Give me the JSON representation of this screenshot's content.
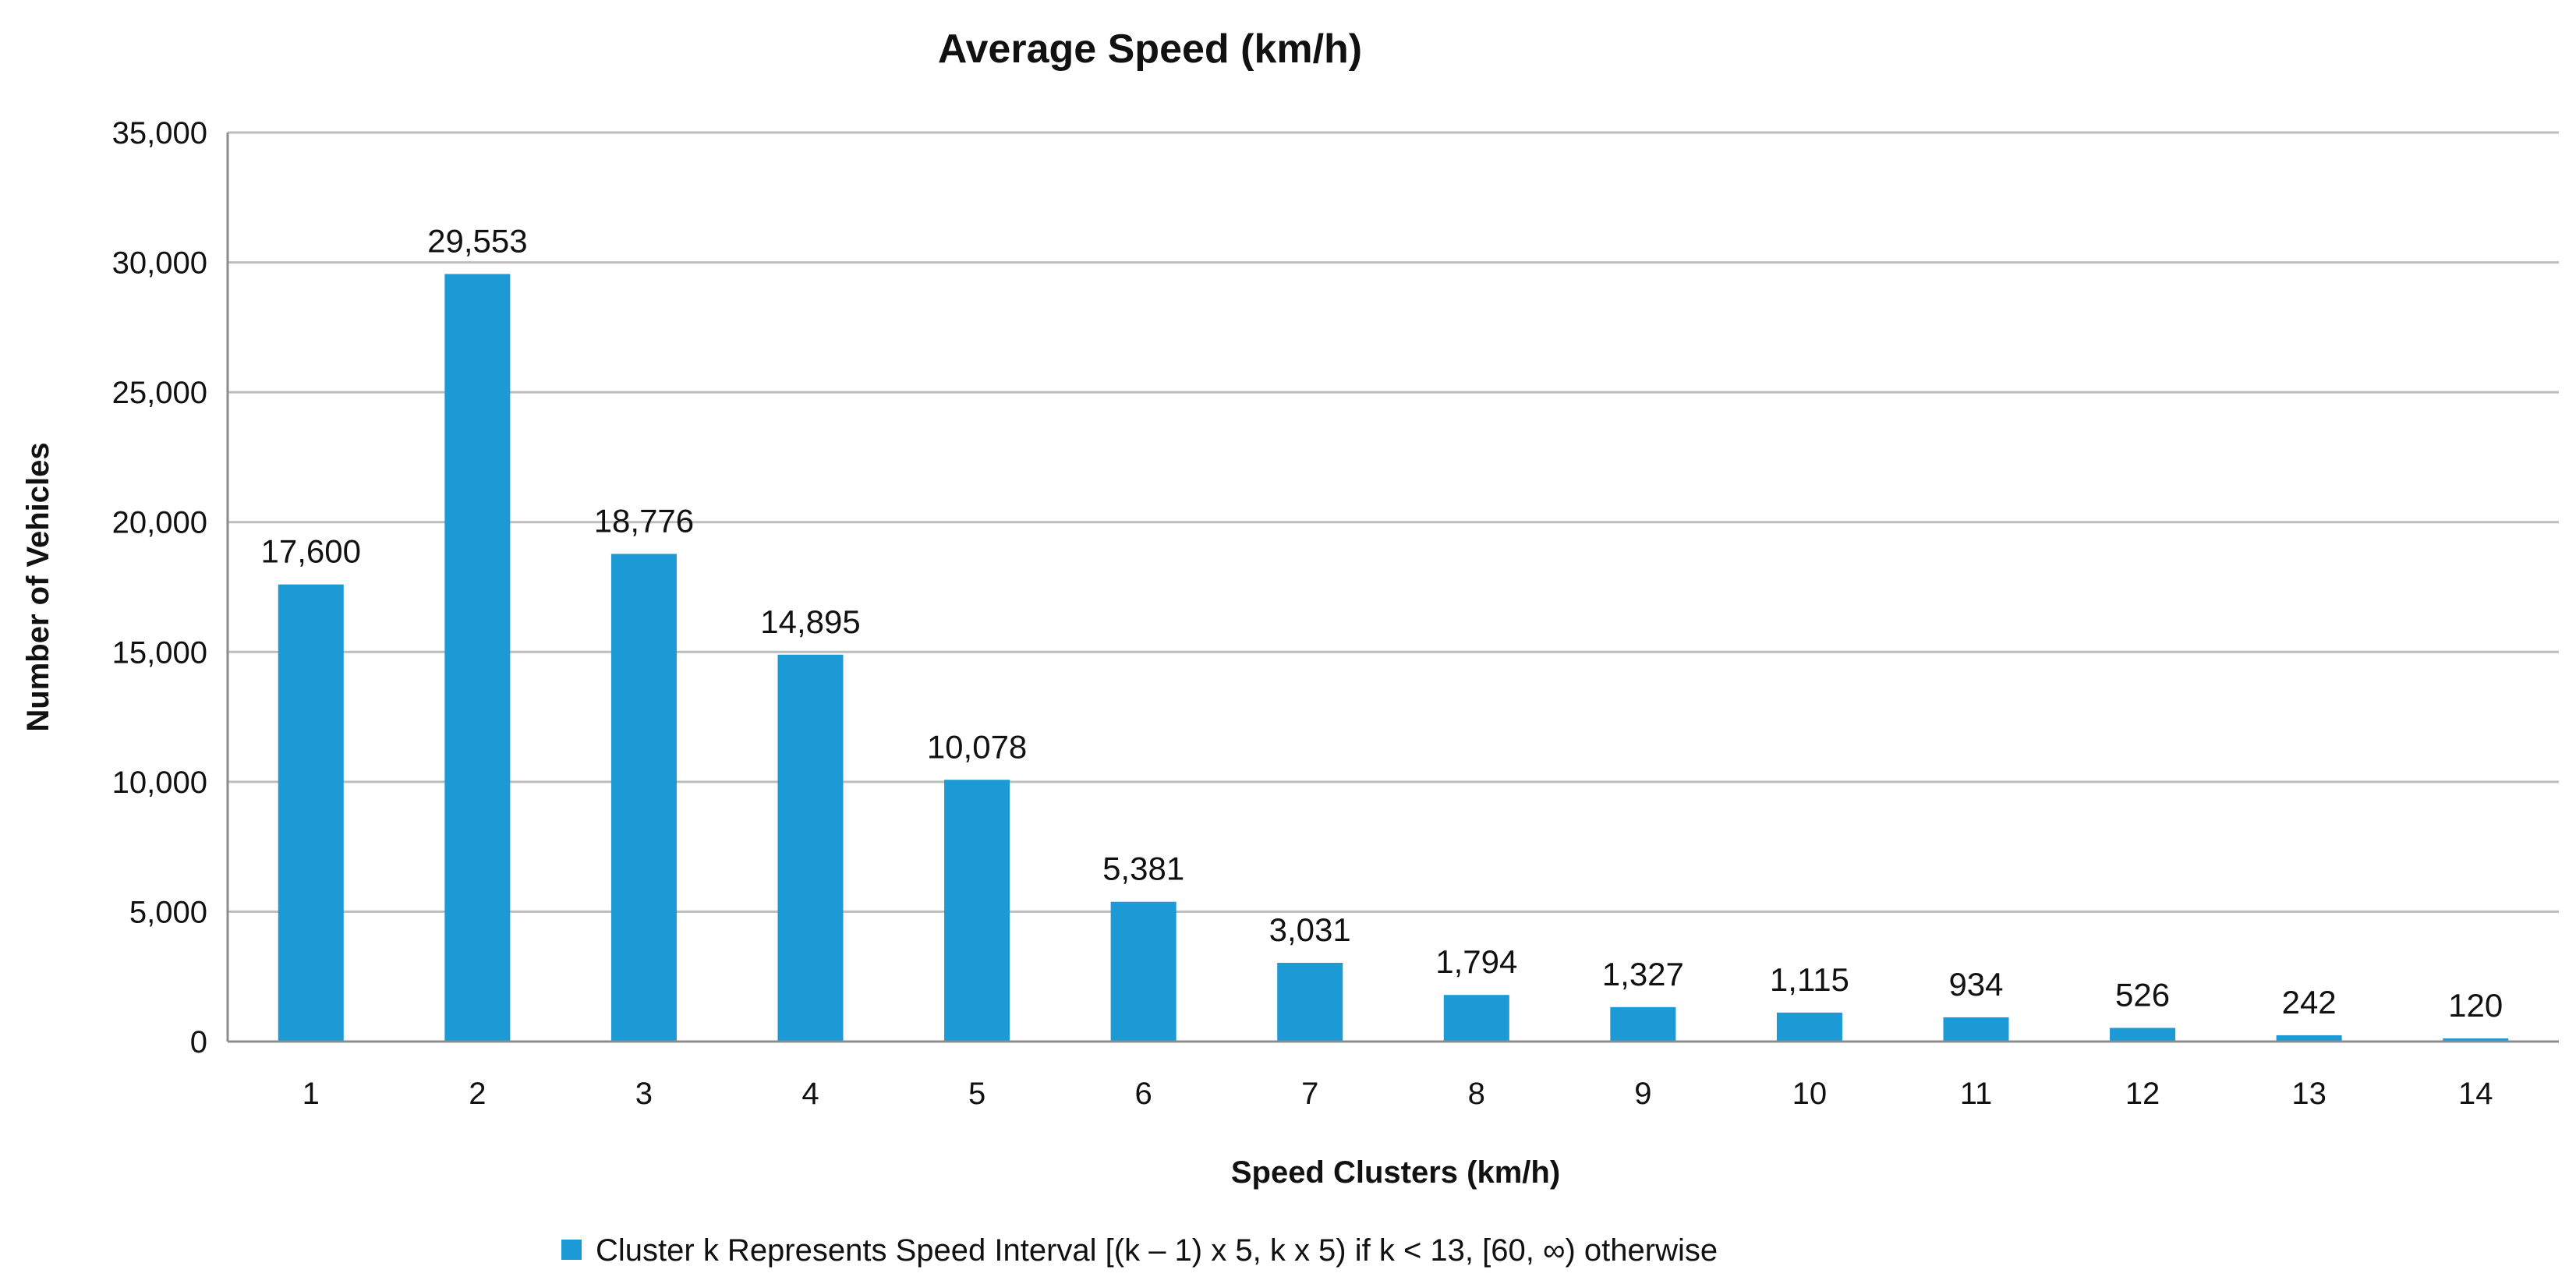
{
  "chart_data": {
    "type": "bar",
    "title": "Average Speed (km/h)",
    "xlabel": "Speed Clusters (km/h)",
    "ylabel": "Number of Vehicles",
    "categories": [
      "1",
      "2",
      "3",
      "4",
      "5",
      "6",
      "7",
      "8",
      "9",
      "10",
      "11",
      "12",
      "13",
      "14"
    ],
    "values": [
      17600,
      29553,
      18776,
      14895,
      10078,
      5381,
      3031,
      1794,
      1327,
      1115,
      934,
      526,
      242,
      120
    ],
    "value_labels": [
      "17,600",
      "29,553",
      "18,776",
      "14,895",
      "10,078",
      "5,381",
      "3,031",
      "1,794",
      "1,327",
      "1,115",
      "934",
      "526",
      "242",
      "120"
    ],
    "ylim": [
      0,
      35000
    ],
    "yticks": [
      0,
      5000,
      10000,
      15000,
      20000,
      25000,
      30000,
      35000
    ],
    "ytick_labels": [
      "0",
      "5,000",
      "10,000",
      "15,000",
      "20,000",
      "25,000",
      "30,000",
      "35,000"
    ],
    "grid": true,
    "legend_placement": "bottom-center",
    "series": [
      {
        "name": "Cluster k Represents Speed Interval [(k – 1) x 5, k x 5) if k < 13, [60, ∞) otherwise",
        "color": "#1b9ad6"
      }
    ]
  }
}
